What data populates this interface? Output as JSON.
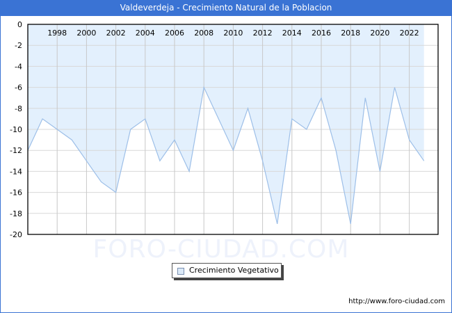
{
  "header": {
    "title": "Valdeverdeja - Crecimiento Natural de la Poblacion"
  },
  "legend": {
    "label": "Crecimiento Vegetativo",
    "swatch_color": "#dceaf8"
  },
  "footer": {
    "url": "http://www.foro-ciudad.com"
  },
  "watermark": {
    "text": "FORO-CIUDAD.COM"
  },
  "colors": {
    "title_bar": "#3a73d4",
    "fill": "#e3f0fd",
    "line": "#9dbfe8",
    "grid": "#d8d8d8"
  },
  "chart_data": {
    "type": "area",
    "title": "Valdeverdeja - Crecimiento Natural de la Poblacion",
    "xlabel": "",
    "ylabel": "",
    "ylim": [
      -20,
      0
    ],
    "yticks": [
      0,
      -2,
      -4,
      -6,
      -8,
      -10,
      -12,
      -14,
      -16,
      -18,
      -20
    ],
    "xtick_labels": [
      "1998",
      "2000",
      "2002",
      "2004",
      "2006",
      "2008",
      "2010",
      "2012",
      "2014",
      "2016",
      "2018",
      "2020",
      "2022"
    ],
    "x_axis_position": "top",
    "grid": true,
    "legend_position": "bottom",
    "x": [
      1996,
      1997,
      1998,
      1999,
      2000,
      2001,
      2002,
      2003,
      2004,
      2005,
      2006,
      2007,
      2008,
      2009,
      2010,
      2011,
      2012,
      2013,
      2014,
      2015,
      2016,
      2017,
      2018,
      2019,
      2020,
      2021,
      2022,
      2023
    ],
    "series": [
      {
        "name": "Crecimiento Vegetativo",
        "values": [
          -12,
          -9,
          -10,
          -11,
          -13,
          -15,
          -16,
          -10,
          -9,
          -13,
          -11,
          -14,
          -6,
          -9,
          -12,
          -8,
          -13,
          -19,
          -9,
          -10,
          -7,
          -12,
          -19,
          -7,
          -14,
          -6,
          -11,
          -13
        ]
      }
    ]
  }
}
